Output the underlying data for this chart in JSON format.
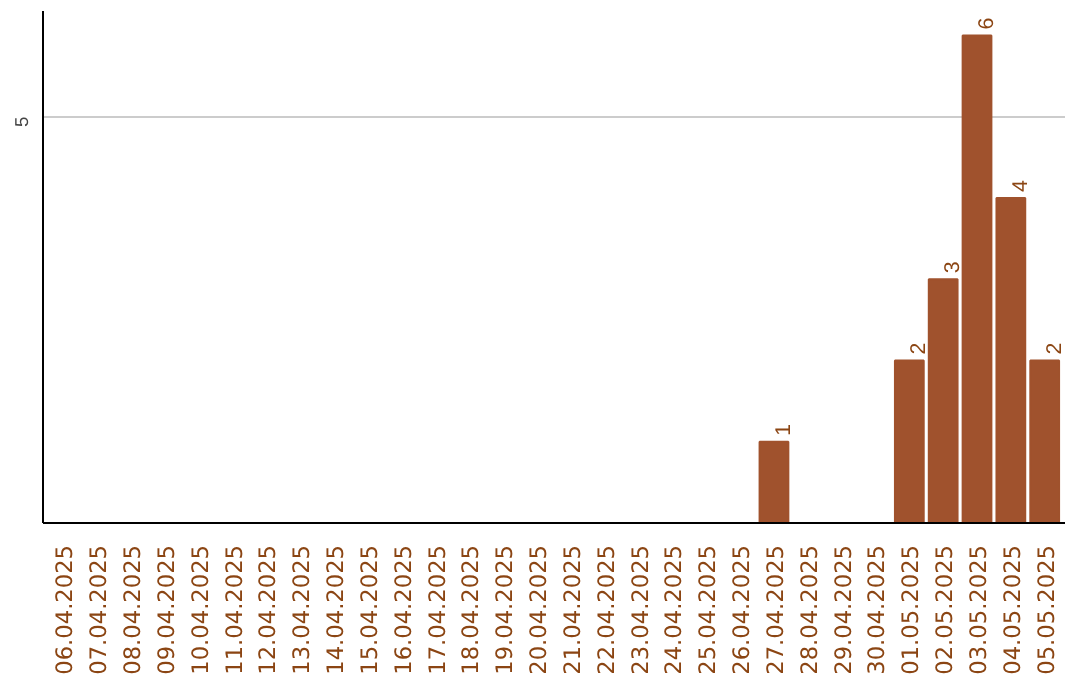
{
  "chart_data": {
    "type": "bar",
    "categories": [
      "06.04.2025",
      "07.04.2025",
      "08.04.2025",
      "09.04.2025",
      "10.04.2025",
      "11.04.2025",
      "12.04.2025",
      "13.04.2025",
      "14.04.2025",
      "15.04.2025",
      "16.04.2025",
      "17.04.2025",
      "18.04.2025",
      "19.04.2025",
      "20.04.2025",
      "21.04.2025",
      "22.04.2025",
      "23.04.2025",
      "24.04.2025",
      "25.04.2025",
      "26.04.2025",
      "27.04.2025",
      "28.04.2025",
      "29.04.2025",
      "30.04.2025",
      "01.05.2025",
      "02.05.2025",
      "03.05.2025",
      "04.05.2025",
      "05.05.2025"
    ],
    "values": [
      null,
      null,
      null,
      null,
      null,
      null,
      null,
      null,
      null,
      null,
      null,
      null,
      null,
      null,
      null,
      null,
      null,
      null,
      null,
      null,
      null,
      1,
      null,
      null,
      null,
      2,
      3,
      6,
      4,
      2
    ],
    "value_labels": [
      null,
      null,
      null,
      null,
      null,
      null,
      null,
      null,
      null,
      null,
      null,
      null,
      null,
      null,
      null,
      null,
      null,
      null,
      null,
      null,
      null,
      "1",
      null,
      null,
      null,
      "2",
      "3",
      "6",
      "4",
      "2"
    ],
    "color": "#a0522d",
    "ylim": [
      0,
      6.3
    ],
    "yticks": [
      5
    ],
    "grid": "y"
  }
}
